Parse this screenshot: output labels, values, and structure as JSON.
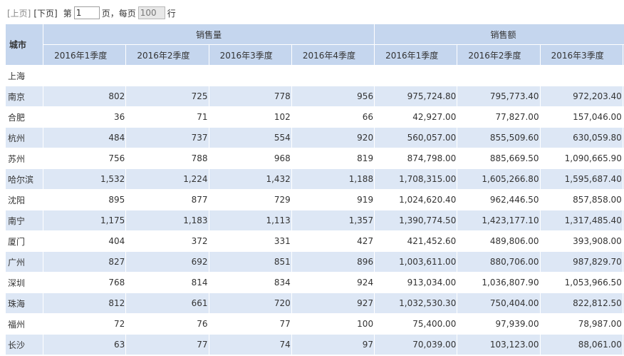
{
  "pager": {
    "prev_label": "[上页]",
    "next_label": "[下页]",
    "page_prefix": "第",
    "page_value": "1",
    "page_suffix": "页，每页",
    "size_value": "100",
    "size_suffix": "行"
  },
  "table": {
    "city_header": "城市",
    "groups": [
      "销售量",
      "销售额"
    ],
    "quarters_qty": [
      "2016年1季度",
      "2016年2季度",
      "2016年3季度",
      "2016年4季度"
    ],
    "quarters_amt": [
      "2016年1季度",
      "2016年2季度",
      "2016年3季度"
    ],
    "rows": [
      {
        "city": "上海",
        "q1": "",
        "q2": "",
        "q3": "",
        "q4": "",
        "a1": "",
        "a2": "",
        "a3": ""
      },
      {
        "city": "南京",
        "q1": "802",
        "q2": "725",
        "q3": "778",
        "q4": "956",
        "a1": "975,724.80",
        "a2": "795,773.40",
        "a3": "972,203.40"
      },
      {
        "city": "合肥",
        "q1": "36",
        "q2": "71",
        "q3": "102",
        "q4": "66",
        "a1": "42,927.00",
        "a2": "77,827.00",
        "a3": "157,046.00"
      },
      {
        "city": "杭州",
        "q1": "484",
        "q2": "737",
        "q3": "554",
        "q4": "920",
        "a1": "560,057.00",
        "a2": "855,509.60",
        "a3": "630,059.80"
      },
      {
        "city": "苏州",
        "q1": "756",
        "q2": "788",
        "q3": "968",
        "q4": "819",
        "a1": "874,798.00",
        "a2": "885,669.50",
        "a3": "1,090,665.90"
      },
      {
        "city": "哈尔滨",
        "q1": "1,532",
        "q2": "1,224",
        "q3": "1,432",
        "q4": "1,188",
        "a1": "1,708,315.00",
        "a2": "1,605,266.80",
        "a3": "1,595,687.40"
      },
      {
        "city": "沈阳",
        "q1": "895",
        "q2": "877",
        "q3": "729",
        "q4": "919",
        "a1": "1,024,620.40",
        "a2": "962,446.50",
        "a3": "857,858.00"
      },
      {
        "city": "南宁",
        "q1": "1,175",
        "q2": "1,183",
        "q3": "1,113",
        "q4": "1,357",
        "a1": "1,390,774.50",
        "a2": "1,423,177.10",
        "a3": "1,317,485.40"
      },
      {
        "city": "厦门",
        "q1": "404",
        "q2": "372",
        "q3": "331",
        "q4": "427",
        "a1": "421,452.60",
        "a2": "489,806.00",
        "a3": "393,908.00"
      },
      {
        "city": "广州",
        "q1": "827",
        "q2": "692",
        "q3": "851",
        "q4": "896",
        "a1": "1,003,611.00",
        "a2": "880,706.00",
        "a3": "987,829.70"
      },
      {
        "city": "深圳",
        "q1": "768",
        "q2": "814",
        "q3": "834",
        "q4": "924",
        "a1": "913,034.00",
        "a2": "1,036,807.90",
        "a3": "1,053,966.50"
      },
      {
        "city": "珠海",
        "q1": "812",
        "q2": "661",
        "q3": "720",
        "q4": "927",
        "a1": "1,032,530.30",
        "a2": "750,404.00",
        "a3": "822,812.50"
      },
      {
        "city": "福州",
        "q1": "72",
        "q2": "76",
        "q3": "77",
        "q4": "100",
        "a1": "75,400.00",
        "a2": "97,939.00",
        "a3": "78,987.00"
      },
      {
        "city": "长沙",
        "q1": "63",
        "q2": "77",
        "q3": "74",
        "q4": "97",
        "a1": "70,039.00",
        "a2": "103,123.00",
        "a3": "88,061.00"
      }
    ]
  }
}
